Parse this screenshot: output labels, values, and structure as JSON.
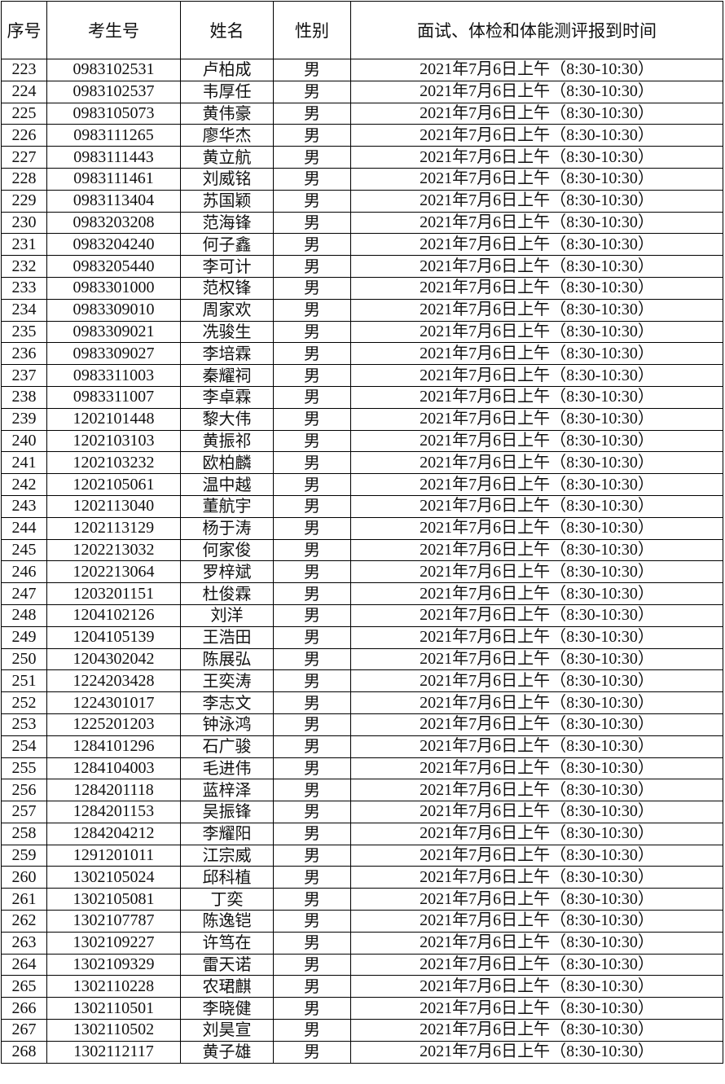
{
  "headers": [
    "序号",
    "考生号",
    "姓名",
    "性别",
    "面试、体检和体能测评报到时间"
  ],
  "rows": [
    [
      "223",
      "0983102531",
      "卢柏成",
      "男",
      "2021年7月6日上午（8:30-10:30）"
    ],
    [
      "224",
      "0983102537",
      "韦厚任",
      "男",
      "2021年7月6日上午（8:30-10:30）"
    ],
    [
      "225",
      "0983105073",
      "黄伟豪",
      "男",
      "2021年7月6日上午（8:30-10:30）"
    ],
    [
      "226",
      "0983111265",
      "廖华杰",
      "男",
      "2021年7月6日上午（8:30-10:30）"
    ],
    [
      "227",
      "0983111443",
      "黄立航",
      "男",
      "2021年7月6日上午（8:30-10:30）"
    ],
    [
      "228",
      "0983111461",
      "刘威铭",
      "男",
      "2021年7月6日上午（8:30-10:30）"
    ],
    [
      "229",
      "0983113404",
      "苏国颖",
      "男",
      "2021年7月6日上午（8:30-10:30）"
    ],
    [
      "230",
      "0983203208",
      "范海锋",
      "男",
      "2021年7月6日上午（8:30-10:30）"
    ],
    [
      "231",
      "0983204240",
      "何子鑫",
      "男",
      "2021年7月6日上午（8:30-10:30）"
    ],
    [
      "232",
      "0983205440",
      "李可计",
      "男",
      "2021年7月6日上午（8:30-10:30）"
    ],
    [
      "233",
      "0983301000",
      "范权锋",
      "男",
      "2021年7月6日上午（8:30-10:30）"
    ],
    [
      "234",
      "0983309010",
      "周家欢",
      "男",
      "2021年7月6日上午（8:30-10:30）"
    ],
    [
      "235",
      "0983309021",
      "冼骏生",
      "男",
      "2021年7月6日上午（8:30-10:30）"
    ],
    [
      "236",
      "0983309027",
      "李培霖",
      "男",
      "2021年7月6日上午（8:30-10:30）"
    ],
    [
      "237",
      "0983311003",
      "秦耀祠",
      "男",
      "2021年7月6日上午（8:30-10:30）"
    ],
    [
      "238",
      "0983311007",
      "李卓霖",
      "男",
      "2021年7月6日上午（8:30-10:30）"
    ],
    [
      "239",
      "1202101448",
      "黎大伟",
      "男",
      "2021年7月6日上午（8:30-10:30）"
    ],
    [
      "240",
      "1202103103",
      "黄振祁",
      "男",
      "2021年7月6日上午（8:30-10:30）"
    ],
    [
      "241",
      "1202103232",
      "欧柏麟",
      "男",
      "2021年7月6日上午（8:30-10:30）"
    ],
    [
      "242",
      "1202105061",
      "温中越",
      "男",
      "2021年7月6日上午（8:30-10:30）"
    ],
    [
      "243",
      "1202113040",
      "董航宇",
      "男",
      "2021年7月6日上午（8:30-10:30）"
    ],
    [
      "244",
      "1202113129",
      "杨于涛",
      "男",
      "2021年7月6日上午（8:30-10:30）"
    ],
    [
      "245",
      "1202213032",
      "何家俊",
      "男",
      "2021年7月6日上午（8:30-10:30）"
    ],
    [
      "246",
      "1202213064",
      "罗梓斌",
      "男",
      "2021年7月6日上午（8:30-10:30）"
    ],
    [
      "247",
      "1203201151",
      "杜俊霖",
      "男",
      "2021年7月6日上午（8:30-10:30）"
    ],
    [
      "248",
      "1204102126",
      "刘洋",
      "男",
      "2021年7月6日上午（8:30-10:30）"
    ],
    [
      "249",
      "1204105139",
      "王浩田",
      "男",
      "2021年7月6日上午（8:30-10:30）"
    ],
    [
      "250",
      "1204302042",
      "陈展弘",
      "男",
      "2021年7月6日上午（8:30-10:30）"
    ],
    [
      "251",
      "1224203428",
      "王奕涛",
      "男",
      "2021年7月6日上午（8:30-10:30）"
    ],
    [
      "252",
      "1224301017",
      "李志文",
      "男",
      "2021年7月6日上午（8:30-10:30）"
    ],
    [
      "253",
      "1225201203",
      "钟泳鸿",
      "男",
      "2021年7月6日上午（8:30-10:30）"
    ],
    [
      "254",
      "1284101296",
      "石广骏",
      "男",
      "2021年7月6日上午（8:30-10:30）"
    ],
    [
      "255",
      "1284104003",
      "毛进伟",
      "男",
      "2021年7月6日上午（8:30-10:30）"
    ],
    [
      "256",
      "1284201118",
      "蓝梓泽",
      "男",
      "2021年7月6日上午（8:30-10:30）"
    ],
    [
      "257",
      "1284201153",
      "吴振锋",
      "男",
      "2021年7月6日上午（8:30-10:30）"
    ],
    [
      "258",
      "1284204212",
      "李耀阳",
      "男",
      "2021年7月6日上午（8:30-10:30）"
    ],
    [
      "259",
      "1291201011",
      "江宗威",
      "男",
      "2021年7月6日上午（8:30-10:30）"
    ],
    [
      "260",
      "1302105024",
      "邱科植",
      "男",
      "2021年7月6日上午（8:30-10:30）"
    ],
    [
      "261",
      "1302105081",
      "丁奕",
      "男",
      "2021年7月6日上午（8:30-10:30）"
    ],
    [
      "262",
      "1302107787",
      "陈逸铠",
      "男",
      "2021年7月6日上午（8:30-10:30）"
    ],
    [
      "263",
      "1302109227",
      "许笃在",
      "男",
      "2021年7月6日上午（8:30-10:30）"
    ],
    [
      "264",
      "1302109329",
      "雷天诺",
      "男",
      "2021年7月6日上午（8:30-10:30）"
    ],
    [
      "265",
      "1302110228",
      "农珺麒",
      "男",
      "2021年7月6日上午（8:30-10:30）"
    ],
    [
      "266",
      "1302110501",
      "李晓健",
      "男",
      "2021年7月6日上午（8:30-10:30）"
    ],
    [
      "267",
      "1302110502",
      "刘昊宣",
      "男",
      "2021年7月6日上午（8:30-10:30）"
    ],
    [
      "268",
      "1302112117",
      "黄子雄",
      "男",
      "2021年7月6日上午（8:30-10:30）"
    ]
  ]
}
